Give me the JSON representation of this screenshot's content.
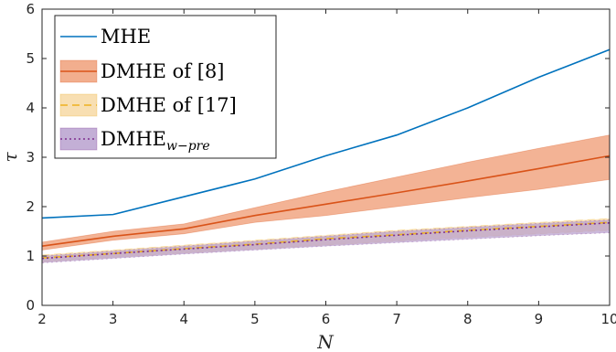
{
  "chart_data": {
    "type": "line",
    "title": "",
    "xlabel": "N",
    "ylabel": "τ",
    "xlim": [
      2,
      10
    ],
    "ylim": [
      0,
      6
    ],
    "xticks": [
      "2",
      "3",
      "4",
      "5",
      "6",
      "7",
      "8",
      "9",
      "10"
    ],
    "yticks": [
      "0",
      "1",
      "2",
      "3",
      "4",
      "5",
      "6"
    ],
    "grid": false,
    "legend_position": "top-left",
    "x": [
      2,
      3,
      4,
      5,
      6,
      7,
      8,
      9,
      10
    ],
    "series": [
      {
        "name": "MHE",
        "values": [
          1.77,
          1.84,
          2.2,
          2.56,
          3.03,
          3.45,
          4.0,
          4.62,
          5.18
        ],
        "color": "#0072BD",
        "style": "solid"
      },
      {
        "name": "DMHE of [8]",
        "values": [
          1.2,
          1.4,
          1.55,
          1.82,
          2.05,
          2.28,
          2.52,
          2.77,
          3.03
        ],
        "band_upper": [
          1.28,
          1.5,
          1.65,
          1.98,
          2.3,
          2.6,
          2.9,
          3.18,
          3.45
        ],
        "band_lower": [
          1.12,
          1.32,
          1.45,
          1.68,
          1.82,
          2.0,
          2.18,
          2.35,
          2.55
        ],
        "color": "#D95319",
        "band_color": "#F0A07A",
        "style": "solid"
      },
      {
        "name": "DMHE of [17]",
        "values": [
          0.96,
          1.05,
          1.15,
          1.24,
          1.35,
          1.43,
          1.52,
          1.6,
          1.68
        ],
        "band_upper": [
          1.02,
          1.12,
          1.22,
          1.32,
          1.42,
          1.52,
          1.6,
          1.68,
          1.76
        ],
        "band_lower": [
          0.88,
          0.97,
          1.06,
          1.14,
          1.22,
          1.3,
          1.38,
          1.45,
          1.52
        ],
        "color": "#EDB120",
        "band_color": "#F7D9A5",
        "style": "dashed"
      },
      {
        "name": "DMHE",
        "subscript": "w−pre",
        "values": [
          0.95,
          1.05,
          1.14,
          1.23,
          1.33,
          1.42,
          1.51,
          1.59,
          1.67
        ],
        "band_upper": [
          1.0,
          1.1,
          1.2,
          1.3,
          1.4,
          1.5,
          1.58,
          1.66,
          1.73
        ],
        "band_lower": [
          0.86,
          0.95,
          1.04,
          1.12,
          1.2,
          1.27,
          1.34,
          1.41,
          1.47
        ],
        "color": "#7E2F8E",
        "band_color": "#B9A1CF",
        "style": "dotted"
      }
    ]
  }
}
